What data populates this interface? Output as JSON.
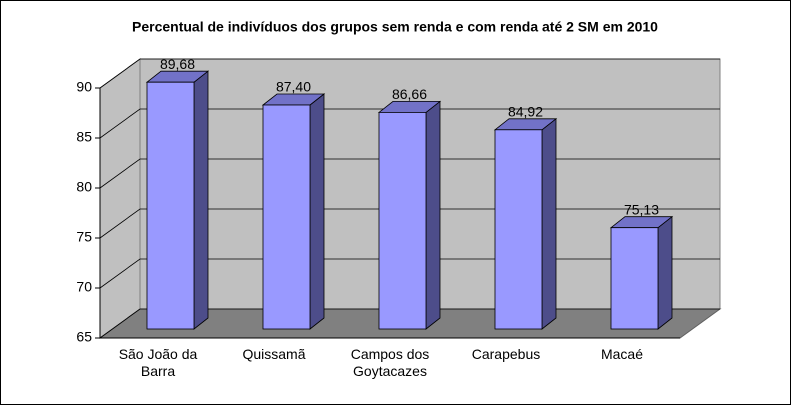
{
  "chart_data": {
    "type": "bar3d",
    "title": "Percentual de indivíduos dos grupos sem renda e com renda até 2 SM em 2010",
    "categories": [
      "São João da Barra",
      "Quissamã",
      "Campos dos Goytacazes",
      "Carapebus",
      "Macaé"
    ],
    "values": [
      89.68,
      87.4,
      86.66,
      84.92,
      75.13
    ],
    "value_labels": [
      "89,68",
      "87,40",
      "86,66",
      "84,92",
      "75,13"
    ],
    "color": "#9999ff",
    "ylim": [
      65,
      90
    ],
    "yticks": [
      65,
      70,
      75,
      80,
      85,
      90
    ],
    "grid": true
  }
}
